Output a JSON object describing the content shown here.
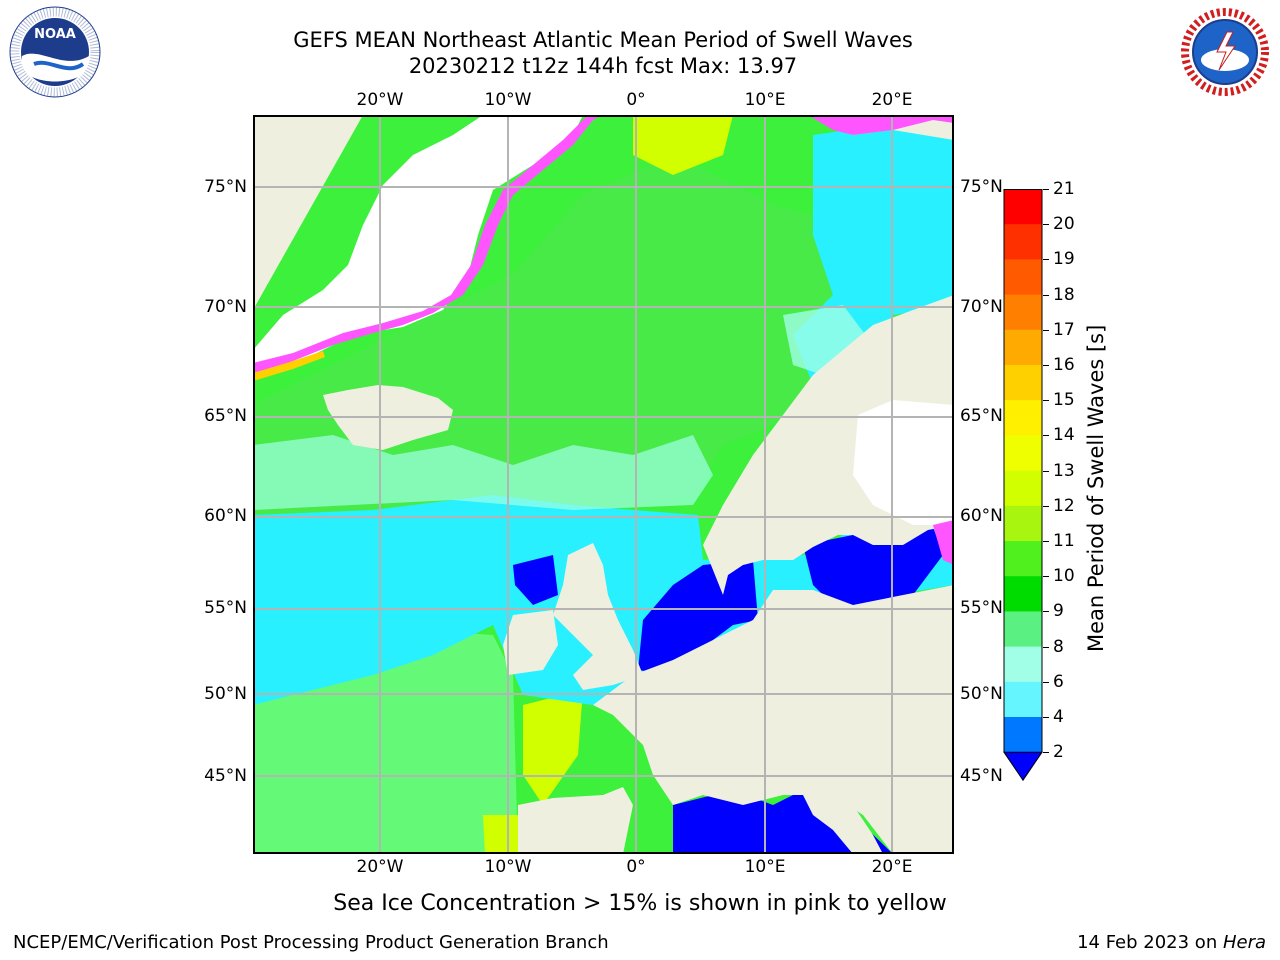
{
  "header": {
    "title_line1": "GEFS MEAN Northeast Atlantic Mean Period of Swell Waves",
    "title_line2": "20230212 t12z 144h fcst   Max: 13.97"
  },
  "logos": {
    "left": "NOAA",
    "right": "NATIONAL WEATHER SERVICE"
  },
  "map": {
    "lon_ticks": [
      "20°W",
      "10°W",
      "0°",
      "10°E",
      "20°E"
    ],
    "lat_ticks": [
      "75°N",
      "70°N",
      "65°N",
      "60°N",
      "55°N",
      "50°N",
      "45°N"
    ],
    "colors": {
      "ocean_swell_green": "#3cf03c",
      "ocean_swell_light_green": "#64fa78",
      "ocean_swell_cyan": "#28f0ff",
      "ocean_swell_blue": "#0000ff",
      "land": "#efefdf",
      "sea_ice": "#ff55ff",
      "grid": "#b4b4b4"
    }
  },
  "colorbar": {
    "title": "Mean Period of Swell Waves [s]",
    "labels": [
      "21",
      "20",
      "19",
      "18",
      "17",
      "16",
      "15",
      "14",
      "13",
      "12",
      "11",
      "10",
      "9",
      "8",
      "6",
      "4",
      "2"
    ],
    "colors": [
      "#ff0000",
      "#ff3000",
      "#ff5a00",
      "#ff8000",
      "#ffaa00",
      "#ffd000",
      "#fff000",
      "#f0ff00",
      "#d2ff00",
      "#a8f510",
      "#50f01e",
      "#00dc00",
      "#5af082",
      "#a0ffe6",
      "#64f5ff",
      "#00f0ff",
      "#0078ff"
    ],
    "extend_color": "#0000ff"
  },
  "notes": {
    "ice_note": "Sea Ice Concentration > 15% is shown in pink to yellow"
  },
  "footer": {
    "left": "NCEP/EMC/Verification Post Processing Product Generation Branch",
    "right_date": "14 Feb 2023 on ",
    "right_host": "Hera"
  }
}
